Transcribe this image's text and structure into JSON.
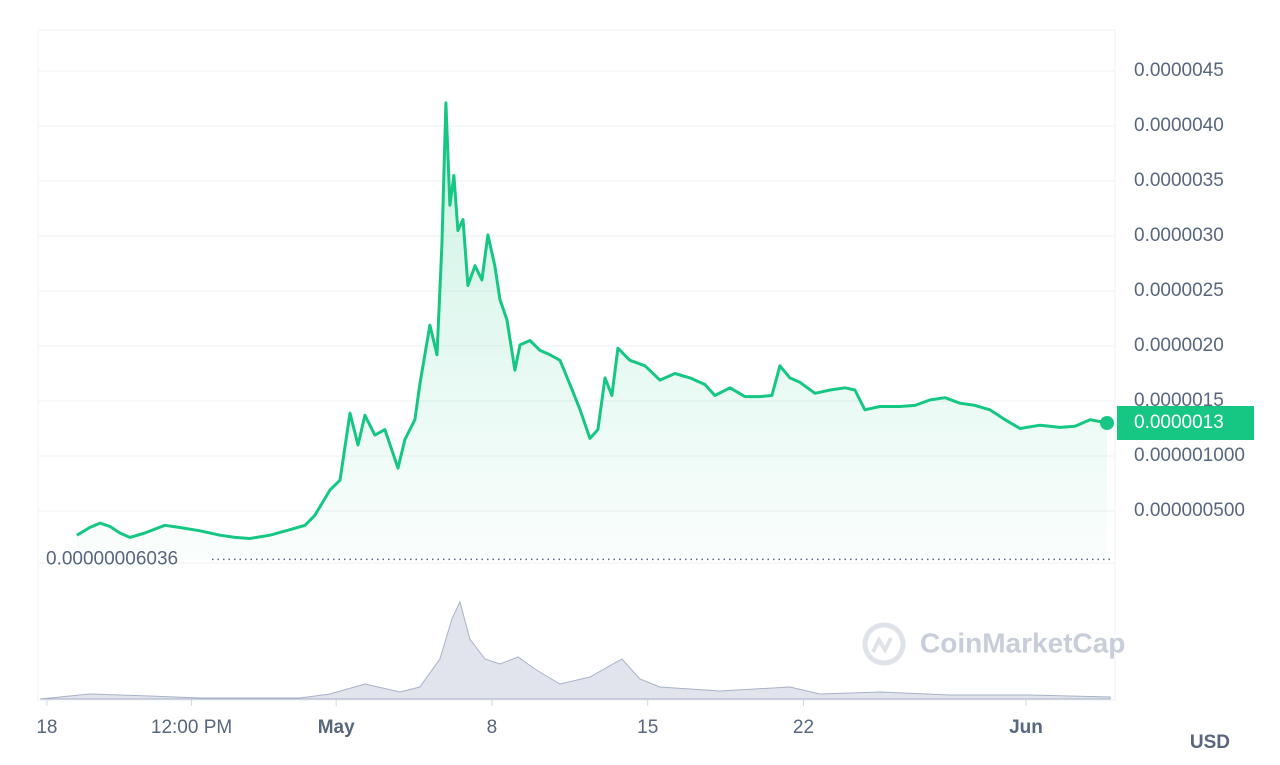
{
  "chart_data": {
    "type": "line",
    "watermark": "CoinMarketCap",
    "currency": "USD",
    "last_price_label": "0.0000013",
    "baseline": {
      "value": 6.036e-08,
      "label": "0.00000006036"
    },
    "xlim": [
      -0.4,
      48
    ],
    "ylim": [
      5.45e-08,
      4.873e-06
    ],
    "xticks": [
      {
        "value": 0,
        "label": "18"
      },
      {
        "value": 6.5,
        "label": "12:00 PM"
      },
      {
        "value": 13,
        "label": "May"
      },
      {
        "value": 20,
        "label": "8"
      },
      {
        "value": 27,
        "label": "15"
      },
      {
        "value": 34,
        "label": "22"
      },
      {
        "value": 44,
        "label": "Jun"
      }
    ],
    "yticks": [
      {
        "value": 4.5e-06,
        "label": "0.0000045"
      },
      {
        "value": 4e-06,
        "label": "0.0000040"
      },
      {
        "value": 3.5e-06,
        "label": "0.0000035"
      },
      {
        "value": 3e-06,
        "label": "0.0000030"
      },
      {
        "value": 2.5e-06,
        "label": "0.0000025"
      },
      {
        "value": 2e-06,
        "label": "0.0000020"
      },
      {
        "value": 1.5e-06,
        "label": "0.0000015"
      },
      {
        "value": 1e-06,
        "label": "0.000001000"
      },
      {
        "value": 5e-07,
        "label": "0.000000500"
      }
    ],
    "grid": true,
    "series": [
      {
        "name": "Price",
        "color": "#16c784",
        "x": [
          1.35,
          1.93,
          2.38,
          2.83,
          3.28,
          3.73,
          4.4,
          5.3,
          5.98,
          6.88,
          7.78,
          8.45,
          9.12,
          10.02,
          10.92,
          11.6,
          12.04,
          12.72,
          13.17,
          13.62,
          13.98,
          14.29,
          14.74,
          15.19,
          15.78,
          16.09,
          16.54,
          16.76,
          17.21,
          17.53,
          17.75,
          17.93,
          18.11,
          18.29,
          18.47,
          18.7,
          18.92,
          19.24,
          19.55,
          19.82,
          20.13,
          20.36,
          20.67,
          21.03,
          21.26,
          21.71,
          22.16,
          22.61,
          23.06,
          23.51,
          23.96,
          24.4,
          24.76,
          25.08,
          25.39,
          25.66,
          26.2,
          26.88,
          27.55,
          28.22,
          28.9,
          29.57,
          30.02,
          30.7,
          31.37,
          32.04,
          32.58,
          32.94,
          33.39,
          33.84,
          34.52,
          35.19,
          35.87,
          36.31,
          36.76,
          37.44,
          38.34,
          39.01,
          39.69,
          40.36,
          41.03,
          41.71,
          42.38,
          43.06,
          43.73,
          44.63,
          45.53,
          46.2,
          46.88,
          47.64
        ],
        "values": [
          2.8e-07,
          3.5e-07,
          3.9e-07,
          3.6e-07,
          3e-07,
          2.6e-07,
          3e-07,
          3.7e-07,
          3.5e-07,
          3.2e-07,
          2.8e-07,
          2.6e-07,
          2.5e-07,
          2.8e-07,
          3.3e-07,
          3.7e-07,
          4.6e-07,
          6.9e-07,
          7.8e-07,
          1.39e-06,
          1.1e-06,
          1.37e-06,
          1.19e-06,
          1.24e-06,
          8.9e-07,
          1.15e-06,
          1.33e-06,
          1.65e-06,
          2.19e-06,
          1.92e-06,
          2.92e-06,
          4.21e-06,
          3.28e-06,
          3.55e-06,
          3.05e-06,
          3.15e-06,
          2.55e-06,
          2.73e-06,
          2.6e-06,
          3.01e-06,
          2.73e-06,
          2.42e-06,
          2.24e-06,
          1.78e-06,
          2.01e-06,
          2.05e-06,
          1.96e-06,
          1.92e-06,
          1.87e-06,
          1.65e-06,
          1.42e-06,
          1.16e-06,
          1.24e-06,
          1.71e-06,
          1.55e-06,
          1.98e-06,
          1.87e-06,
          1.82e-06,
          1.69e-06,
          1.75e-06,
          1.71e-06,
          1.65e-06,
          1.55e-06,
          1.62e-06,
          1.54e-06,
          1.54e-06,
          1.55e-06,
          1.82e-06,
          1.71e-06,
          1.67e-06,
          1.57e-06,
          1.6e-06,
          1.62e-06,
          1.6e-06,
          1.42e-06,
          1.45e-06,
          1.45e-06,
          1.46e-06,
          1.51e-06,
          1.53e-06,
          1.48e-06,
          1.46e-06,
          1.42e-06,
          1.33e-06,
          1.25e-06,
          1.28e-06,
          1.26e-06,
          1.27e-06,
          1.33e-06,
          1.3e-06
        ]
      }
    ],
    "volume": {
      "color": "#a8b1c8",
      "ylim": [
        0,
        135
      ],
      "x": [
        -0.31,
        1.93,
        4.63,
        6.88,
        11.37,
        12.72,
        14.29,
        15.87,
        16.76,
        17.66,
        18.2,
        18.56,
        19.01,
        19.69,
        20.36,
        21.17,
        21.93,
        23.06,
        24.4,
        25.84,
        26.65,
        27.55,
        30.25,
        33.39,
        34.74,
        37.44,
        40.58,
        44.18,
        47.78
      ],
      "values": [
        0,
        5,
        3,
        1,
        1,
        5,
        15,
        7,
        12,
        40,
        80,
        97,
        60,
        40,
        35,
        42,
        30,
        15,
        22,
        40,
        20,
        12,
        8,
        12,
        5,
        7,
        4,
        4,
        2
      ]
    }
  }
}
